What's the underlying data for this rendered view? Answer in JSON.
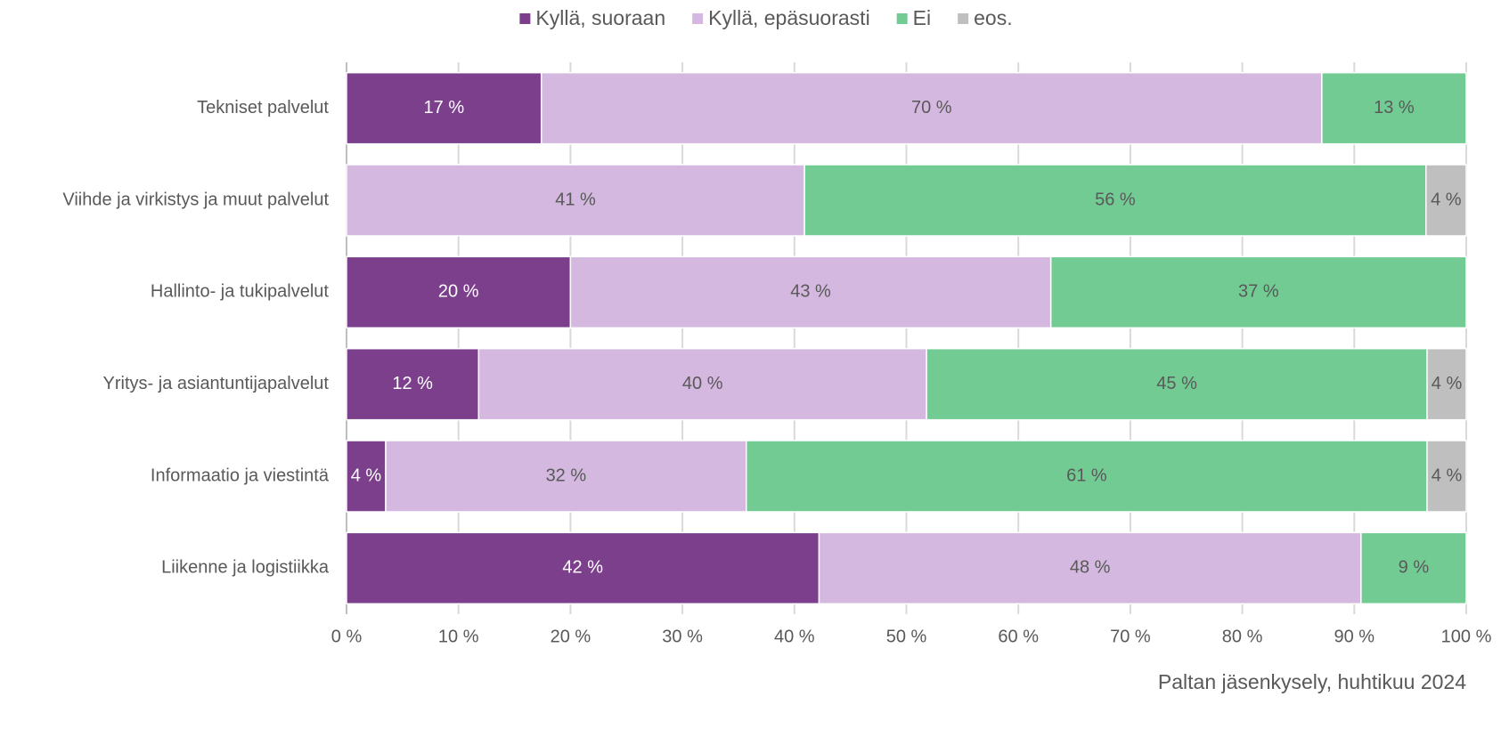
{
  "chart_data": {
    "type": "stacked-bar-horizontal",
    "categories": [
      "Tekniset palvelut",
      "Viihde ja virkistys ja muut palvelut",
      "Hallinto- ja tukipalvelut",
      "Yritys- ja asiantuntijapalvelut",
      "Informaatio ja viestintä",
      "Liikenne ja logistiikka"
    ],
    "series": [
      {
        "name": "Kyllä, suoraan",
        "color": "#7b3f8c",
        "values": [
          17.4,
          null,
          20.0,
          11.8,
          3.5,
          42.2
        ],
        "value_labels": [
          "17 %",
          null,
          "20 %",
          "12 %",
          "4 %",
          "42 %"
        ]
      },
      {
        "name": "Kyllä, epäsuorasti",
        "color": "#d4b8df",
        "values": [
          69.7,
          40.9,
          42.9,
          40.0,
          32.2,
          48.4
        ],
        "value_labels": [
          "70 %",
          "41 %",
          "43 %",
          "40 %",
          "32 %",
          "48 %"
        ]
      },
      {
        "name": "Ei",
        "color": "#73cb94",
        "values": [
          12.9,
          55.5,
          37.1,
          44.7,
          60.8,
          9.4
        ],
        "value_labels": [
          "13 %",
          "56 %",
          "37 %",
          "45 %",
          "61 %",
          "9 %"
        ]
      },
      {
        "name": "eos.",
        "color": "#bfbfbf",
        "values": [
          null,
          3.6,
          null,
          3.5,
          3.5,
          null
        ],
        "value_labels": [
          null,
          "4 %",
          null,
          "4 %",
          "4 %",
          null
        ]
      }
    ],
    "xlim": [
      0,
      100
    ],
    "xticks": [
      {
        "value": 0,
        "label": "0 %"
      },
      {
        "value": 10,
        "label": "10 %"
      },
      {
        "value": 20,
        "label": "20 %"
      },
      {
        "value": 30,
        "label": "30 %"
      },
      {
        "value": 40,
        "label": "40 %"
      },
      {
        "value": 50,
        "label": "50 %"
      },
      {
        "value": 60,
        "label": "60 %"
      },
      {
        "value": 70,
        "label": "70 %"
      },
      {
        "value": 80,
        "label": "80 %"
      },
      {
        "value": 90,
        "label": "90 %"
      },
      {
        "value": 100,
        "label": "100 %"
      }
    ],
    "grid": true,
    "legend": "top",
    "source": "Paltan jäsenkysely, huhtikuu 2024"
  }
}
